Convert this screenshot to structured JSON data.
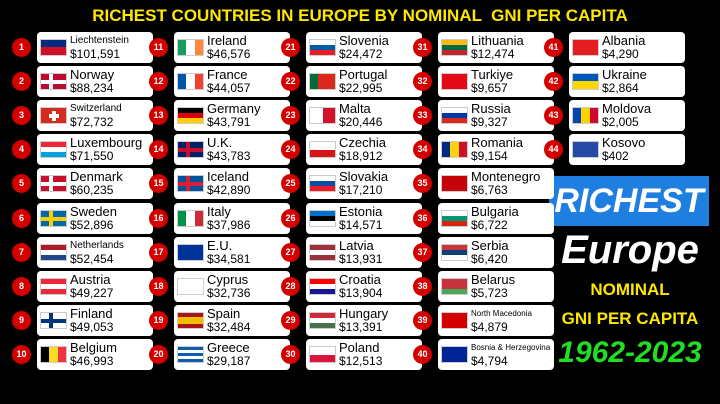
{
  "title": "RICHEST COUNTRIES IN EUROPE BY NOMINAL  GNI PER CAPITA",
  "entries": [
    {
      "rank": 1,
      "country": "Liechtenstein",
      "value": "$101,591"
    },
    {
      "rank": 2,
      "country": "Norway",
      "value": "$88,234"
    },
    {
      "rank": 3,
      "country": "Switzerland",
      "value": "$72,732"
    },
    {
      "rank": 4,
      "country": "Luxembourg",
      "value": "$71,550"
    },
    {
      "rank": 5,
      "country": "Denmark",
      "value": "$60,235"
    },
    {
      "rank": 6,
      "country": "Sweden",
      "value": "$52,896"
    },
    {
      "rank": 7,
      "country": "Netherlands",
      "value": "$52,454"
    },
    {
      "rank": 8,
      "country": "Austria",
      "value": "$49,227"
    },
    {
      "rank": 9,
      "country": "Finland",
      "value": "$49,053"
    },
    {
      "rank": 10,
      "country": "Belgium",
      "value": "$46,993"
    },
    {
      "rank": 11,
      "country": "Ireland",
      "value": "$46,576"
    },
    {
      "rank": 12,
      "country": "France",
      "value": "$44,057"
    },
    {
      "rank": 13,
      "country": "Germany",
      "value": "$43,791"
    },
    {
      "rank": 14,
      "country": "U.K.",
      "value": "$43,783"
    },
    {
      "rank": 15,
      "country": "Iceland",
      "value": "$42,890"
    },
    {
      "rank": 16,
      "country": "Italy",
      "value": "$37,986"
    },
    {
      "rank": 17,
      "country": "E.U.",
      "value": "$34,581"
    },
    {
      "rank": 18,
      "country": "Cyprus",
      "value": "$32,736"
    },
    {
      "rank": 19,
      "country": "Spain",
      "value": "$32,484"
    },
    {
      "rank": 20,
      "country": "Greece",
      "value": "$29,187"
    },
    {
      "rank": 21,
      "country": "Slovenia",
      "value": "$24,472"
    },
    {
      "rank": 22,
      "country": "Portugal",
      "value": "$22,995"
    },
    {
      "rank": 23,
      "country": "Malta",
      "value": "$20,446"
    },
    {
      "rank": 24,
      "country": "Czechia",
      "value": "$18,912"
    },
    {
      "rank": 25,
      "country": "Slovakia",
      "value": "$17,210"
    },
    {
      "rank": 26,
      "country": "Estonia",
      "value": "$14,571"
    },
    {
      "rank": 27,
      "country": "Latvia",
      "value": "$13,931"
    },
    {
      "rank": 28,
      "country": "Croatia",
      "value": "$13,904"
    },
    {
      "rank": 29,
      "country": "Hungary",
      "value": "$13,391"
    },
    {
      "rank": 30,
      "country": "Poland",
      "value": "$12,513"
    },
    {
      "rank": 31,
      "country": "Lithuania",
      "value": "$12,474"
    },
    {
      "rank": 32,
      "country": "Turkiye",
      "value": "$9,657"
    },
    {
      "rank": 33,
      "country": "Russia",
      "value": "$9,327"
    },
    {
      "rank": 34,
      "country": "Romania",
      "value": "$9,154"
    },
    {
      "rank": 35,
      "country": "Montenegro",
      "value": "$6,763"
    },
    {
      "rank": 36,
      "country": "Bulgaria",
      "value": "$6,722"
    },
    {
      "rank": 37,
      "country": "Serbia",
      "value": "$6,420"
    },
    {
      "rank": 38,
      "country": "Belarus",
      "value": "$5,723"
    },
    {
      "rank": 39,
      "country": "North Macedonia",
      "value": "$4,879"
    },
    {
      "rank": 40,
      "country": "Bosnia & Herzegovina",
      "value": "$4,794"
    },
    {
      "rank": 41,
      "country": "Albania",
      "value": "$4,290"
    },
    {
      "rank": 42,
      "country": "Ukraine",
      "value": "$2,864"
    },
    {
      "rank": 43,
      "country": "Moldova",
      "value": "$2,005"
    },
    {
      "rank": 44,
      "country": "Kosovo",
      "value": "$402"
    }
  ],
  "panel": {
    "line1": "RICHEST",
    "line2": "Europe",
    "line3": "NOMINAL",
    "line4": "GNI PER CAPITA",
    "line5": "1962-2023"
  }
}
